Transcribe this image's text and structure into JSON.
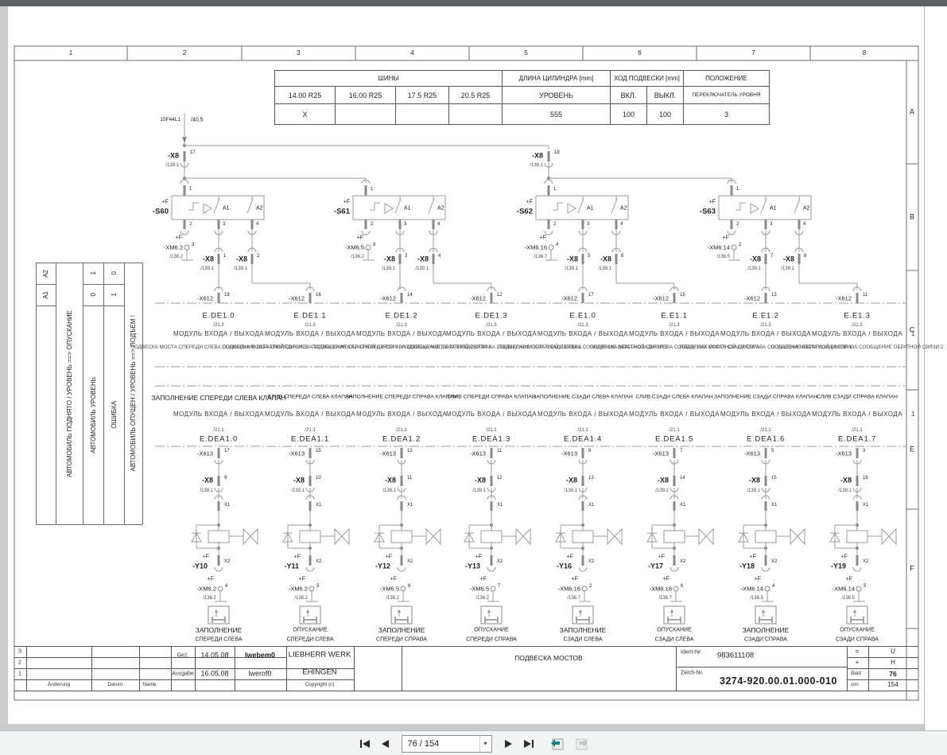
{
  "toolbar": {
    "page_display": "76 / 154"
  },
  "frame": {
    "columns": [
      "1",
      "2",
      "3",
      "4",
      "5",
      "6",
      "7",
      "8"
    ],
    "rows": [
      "A",
      "B",
      "C",
      "E",
      "F"
    ]
  },
  "info_table": {
    "tires_header": "ШИНЫ",
    "tire_sizes": [
      "14.00 R25",
      "16.00 R25",
      "17.5 R25",
      "20.5 R25"
    ],
    "cylinder_header": "ДЛИНА ЦИЛИНДРА [mm]",
    "cylinder_sub": "УРОВЕНЬ",
    "travel_header": "ХОД ПОДВЕСКИ [mm]",
    "travel_on": "ВКЛ.",
    "travel_off": "ВЫКЛ.",
    "position_header": "ПОЛОЖЕНИЕ",
    "position_sub": "ПЕРЕКЛЮЧАТЕЛЬ УРОВНЯ",
    "values": {
      "tire1": "X",
      "tire2": "",
      "tire3": "",
      "tire4": "",
      "cylinder": "555",
      "on": "100",
      "off": "100",
      "position": "3"
    }
  },
  "state_table": {
    "col_a2": "A2",
    "col_a1": "A1",
    "label_lower": "АВТОМОБИЛЬ ПОДНЯТО / УРОВЕНЬ ==> ОПУСКАНИЕ",
    "rows": [
      {
        "label": "АВТОМОБИЛЬ УРОВЕНЬ",
        "a2": "1",
        "a1": "0"
      },
      {
        "label": "ОШИБКА",
        "a2": "0",
        "a1": "1"
      }
    ],
    "label_raise": "АВТОМОБИЛЬ ОПУЩЕН / УРОВЕНЬ ==> ПОДЪЕМ !"
  },
  "schematic": {
    "feed": {
      "label": "15F44L1",
      "ref": "/40.5"
    },
    "plus_f": "+F",
    "x8_label": "-X8",
    "x8_ref": "/139.1",
    "x8_feed": [
      {
        "pin": "17"
      },
      {
        "pin": "18"
      }
    ],
    "contact_labels": [
      "A1",
      "A2"
    ],
    "switch_pins": [
      "1",
      "2",
      "3",
      "4"
    ],
    "switches": [
      {
        "name": "-S60",
        "xm": "-XM6.2",
        "xm_pin": "3",
        "xm_ref": "/136.2",
        "out_pins": [
          "1",
          "2"
        ]
      },
      {
        "name": "-S61",
        "xm": "-XM6.5",
        "xm_pin": "8",
        "xm_ref": "/136.2",
        "out_pins": [
          "3",
          "4"
        ]
      },
      {
        "name": "-S62",
        "xm": "-XM6.16",
        "xm_pin": "4",
        "xm_ref": "/136.7",
        "out_pins": [
          "5",
          "6"
        ]
      },
      {
        "name": "-S63",
        "xm": "-XM6.14",
        "xm_pin": "2",
        "xm_ref": "/136.5",
        "out_pins": [
          "7",
          "8"
        ]
      }
    ],
    "module_label": "МОДУЛЬ ВХОДА / ВЫХОДА",
    "module_label_suffix": "1",
    "row_c": {
      "connector": "-X612",
      "ref": "/21.3",
      "modules": [
        {
          "x612_pin": "18",
          "name": "E.DE1.0",
          "valve_label": "ЗАПОЛНЕНИЕ СПЕРЕДИ СЛЕВА КЛАПАН",
          "feedback": "ПОДВЕСКА МОСТА СПЕРЕДИ СЛЕВА СООБЩЕНИЕ ОБРАТНОЙ СВЯЗИ 1"
        },
        {
          "x612_pin": "16",
          "name": "E.DE1.1",
          "valve_label": "СЛИВ СПЕРЕДИ СЛЕВА КЛАПАН",
          "feedback": "ПОДВЕСКА МОСТА СПЕРЕДИ СЛЕВА СООБЩЕНИЕ ОБРАТНОЙ СВЯЗИ 2"
        },
        {
          "x612_pin": "14",
          "name": "E.DE1.2",
          "valve_label": "ЗАПОЛНЕНИЕ СПЕРЕДИ СПРАВА КЛАПАН",
          "feedback": "ПОДВЕСКА МОСТА СПЕРЕДИ СПРАВА СООБЩЕНИЕ ОБРАТНОЙ СВЯЗИ 1"
        },
        {
          "x612_pin": "12",
          "name": "E.DE1.3",
          "valve_label": "СЛИВ СПЕРЕДИ СПРАВА КЛАПАН",
          "feedback": "ПОДВЕСКА МОСТА СПЕРЕДИ СПРАВА СООБЩЕНИЕ ОБРАТНОЙ СВЯЗИ 2"
        },
        {
          "x612_pin": "17",
          "name": "E.E1.0",
          "valve_label": "ЗАПОЛНЕНИЕ СЗАДИ СЛЕВА КЛАПАН",
          "feedback": "ПОДВЕСКА МОСТА СЗАДИ СЛЕВА СООБЩЕНИЕ ОБРАТНОЙ СВЯЗИ 1"
        },
        {
          "x612_pin": "15",
          "name": "E.E1.1",
          "valve_label": "СЛИВ СЗАДИ СЛЕВА КЛАПАН",
          "feedback": "ПОДВЕСКА МОСТА СЗАДИ СЛЕВА СООБЩЕНИЕ ОБРАТНОЙ СВЯЗИ 2"
        },
        {
          "x612_pin": "13",
          "name": "E.E1.2",
          "valve_label": "ЗАПОЛНЕНИЕ СЗАДИ СПРАВА КЛАПАН",
          "feedback": "ПОДВЕСКА МОСТА СЗАДИ СПРАВА СООБЩЕНИЕ ОБРАТНОЙ СВЯЗИ 1"
        },
        {
          "x612_pin": "11",
          "name": "E.E1.3",
          "valve_label": "СЛИВ СЗАДИ СПРАВА КЛАПАН",
          "feedback": "ПОДВЕСКА МОСТА СЗАДИ СПРАВА СООБЩЕНИЕ ОБРАТНОЙ СВЯЗИ 2"
        }
      ]
    },
    "row_e": {
      "connector": "-X613",
      "ref": "/21.1",
      "modules": [
        {
          "name": "E.DEA1.0",
          "x613_pin": "17"
        },
        {
          "name": "E.DEA1.1",
          "x613_pin": "15"
        },
        {
          "name": "E.DEA1.2",
          "x613_pin": "13"
        },
        {
          "name": "E.DEA1.3",
          "x613_pin": "11"
        },
        {
          "name": "E.DEA1.4",
          "x613_pin": "9"
        },
        {
          "name": "E.DEA1.5",
          "x613_pin": "7"
        },
        {
          "name": "E.DEA1.6",
          "x613_pin": "5"
        },
        {
          "name": "E.DEA1.7",
          "x613_pin": "3"
        }
      ]
    },
    "valve_pin1": "X1",
    "valve_pin2": "X2",
    "valves": [
      {
        "name": "-Y10",
        "x8_pin": "9",
        "xm": "-XM6.2",
        "xm_pin": "4",
        "xm_ref": "/136.2",
        "cap1": "ЗАПОЛНЕНИЕ",
        "cap2": "СПЕРЕДИ СЛЕВА"
      },
      {
        "name": "-Y11",
        "x8_pin": "10",
        "xm": "-XM6.2",
        "xm_pin": "5",
        "xm_ref": "/136.2",
        "cap1": "ОПУСКАНИЕ",
        "cap2": "СПЕРЕДИ СЛЕВА"
      },
      {
        "name": "-Y12",
        "x8_pin": "11",
        "xm": "-XM6.5",
        "xm_pin": "6",
        "xm_ref": "/136.2",
        "cap1": "ЗАПОЛНЕНИЕ",
        "cap2": "СПЕРЕДИ СПРАВА"
      },
      {
        "name": "-Y13",
        "x8_pin": "12",
        "xm": "-XM6.5",
        "xm_pin": "7",
        "xm_ref": "/136.2",
        "cap1": "ОПУСКАНИЕ",
        "cap2": "СПЕРЕДИ СПРАВА"
      },
      {
        "name": "-Y16",
        "x8_pin": "13",
        "xm": "-XM6.16",
        "xm_pin": "2",
        "xm_ref": "/136.7",
        "cap1": "ЗАПОЛНЕНИЕ",
        "cap2": "СЗАДИ СЛЕВА"
      },
      {
        "name": "-Y17",
        "x8_pin": "14",
        "xm": "-XM6.16",
        "xm_pin": "6",
        "xm_ref": "/136.7",
        "cap1": "ОПУСКАНИЕ",
        "cap2": "СЗАДИ СЛЕВА"
      },
      {
        "name": "-Y18",
        "x8_pin": "15",
        "xm": "-XM6.14",
        "xm_pin": "4",
        "xm_ref": "/136.5",
        "cap1": "ЗАПОЛНЕНИЕ",
        "cap2": "СЗАДИ СПРАВА"
      },
      {
        "name": "-Y19",
        "x8_pin": "16",
        "xm": "-XM6.14",
        "xm_pin": "5",
        "xm_ref": "/136.5",
        "cap1": "ОПУСКАНИЕ",
        "cap2": "СЗАДИ СПРАВА"
      }
    ]
  },
  "title_block": {
    "rev_rows": [
      "3",
      "2",
      "1"
    ],
    "col_change": "Änderung",
    "col_date": "Datum",
    "col_name": "Name",
    "gez_label": "Gez.",
    "gez_date": "14.05.08",
    "gez_name": "lwebem0",
    "ausgabe_label": "Ausgabe",
    "ausgabe_date": "16.05.08",
    "ausgabe_name": "lwerof0",
    "firm_line1": "LIEBHERR WERK",
    "firm_line2": "EHINGEN",
    "copyright": "Copyright (c)",
    "title": "ПОДВЕСКА МОСТОВ",
    "ident_label": "Ident-Nr.",
    "ident_value": "983611108",
    "zeich_label": "Zeich-Nr.",
    "zeich_value": "3274-920.00.01.000-010",
    "eq_sign": "=",
    "eq_value": "U",
    "plus_sign": "+",
    "plus_value": "H",
    "blatt_label": "Blatt",
    "blatt_value": "76",
    "von_label": "von",
    "von_value": "154"
  }
}
